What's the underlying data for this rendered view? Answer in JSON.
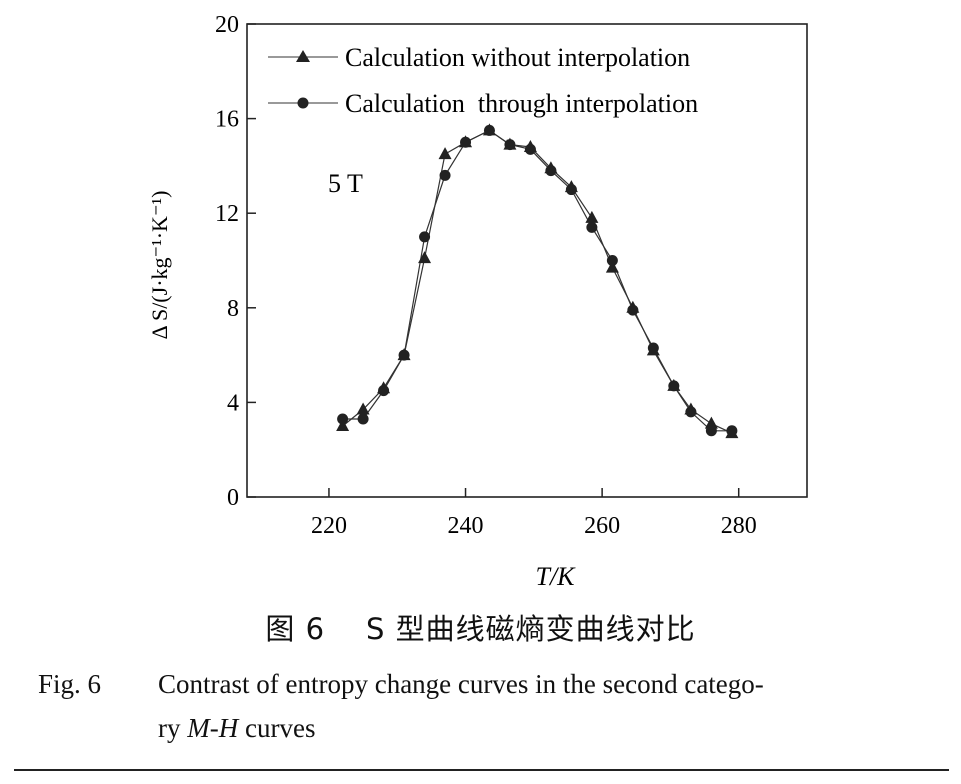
{
  "chart_data": {
    "type": "line",
    "ylabel": "Δ S/(J·kg⁻¹·K⁻¹)",
    "xlabel": "T/K",
    "xlim": [
      208,
      290
    ],
    "ylim": [
      0,
      20
    ],
    "x_ticks": [
      "220",
      "240",
      "260",
      "280"
    ],
    "y_ticks": [
      "0",
      "4",
      "8",
      "12",
      "16",
      "20"
    ],
    "grid": false,
    "legend_position": "top",
    "annotation": "5 T",
    "series": [
      {
        "name": "Calculation without interpolation",
        "marker": "triangle",
        "points": [
          [
            222,
            3.0
          ],
          [
            225,
            3.7
          ],
          [
            228,
            4.6
          ],
          [
            231,
            6.0
          ],
          [
            234,
            10.1
          ],
          [
            237,
            14.5
          ],
          [
            240,
            15.0
          ],
          [
            243.5,
            15.5
          ],
          [
            246.5,
            14.9
          ],
          [
            249.5,
            14.8
          ],
          [
            252.5,
            13.9
          ],
          [
            255.5,
            13.1
          ],
          [
            258.5,
            11.8
          ],
          [
            261.5,
            9.7
          ],
          [
            264.5,
            8.0
          ],
          [
            267.5,
            6.2
          ],
          [
            270.5,
            4.7
          ],
          [
            273,
            3.7
          ],
          [
            276,
            3.1
          ],
          [
            279,
            2.7
          ]
        ]
      },
      {
        "name": "Calculation  through interpolation",
        "marker": "circle",
        "points": [
          [
            222,
            3.3
          ],
          [
            225,
            3.3
          ],
          [
            228,
            4.5
          ],
          [
            231,
            6.0
          ],
          [
            234,
            11.0
          ],
          [
            237,
            13.6
          ],
          [
            240,
            15.0
          ],
          [
            243.5,
            15.5
          ],
          [
            246.5,
            14.9
          ],
          [
            249.5,
            14.7
          ],
          [
            252.5,
            13.8
          ],
          [
            255.5,
            13.0
          ],
          [
            258.5,
            11.4
          ],
          [
            261.5,
            10.0
          ],
          [
            264.5,
            7.9
          ],
          [
            267.5,
            6.3
          ],
          [
            270.5,
            4.7
          ],
          [
            273,
            3.6
          ],
          [
            276,
            2.8
          ],
          [
            279,
            2.8
          ]
        ]
      }
    ]
  },
  "caption": {
    "cn": "图 6    S 型曲线磁熵变曲线对比",
    "en_label": "Fig. 6",
    "en_line1": "Contrast of entropy change curves in the second catego-",
    "en_line2_pre": "ry ",
    "en_line2_em": "M-H",
    "en_line2_post": " curves"
  }
}
